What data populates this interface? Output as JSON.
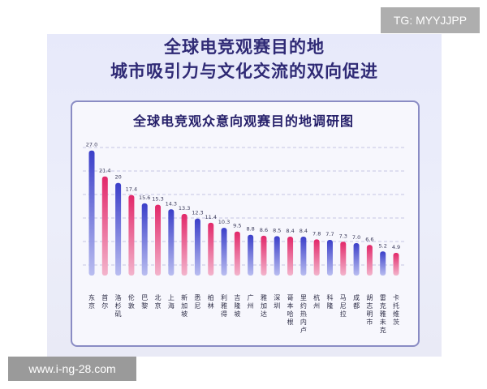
{
  "watermark_top": "TG: MYYJJPP",
  "watermark_bottom": "www.i-ng-28.com",
  "header": {
    "line1": "全球电竞观赛目的地",
    "line2": "城市吸引力与文化交流的双向促进"
  },
  "colors": {
    "blue": "#4f57d8",
    "pink": "#e0336e",
    "title": "#2f2a75"
  },
  "chart_data": {
    "type": "bar",
    "title": "全球电竞观众意向观赛目的地调研图",
    "categories": [
      "东京",
      "首尔",
      "洛杉矶",
      "伦敦",
      "巴黎",
      "北京",
      "上海",
      "新加坡",
      "悉尼",
      "柏林",
      "利雅得",
      "吉隆坡",
      "广州",
      "雅加达",
      "深圳",
      "哥本哈根",
      "里约热内卢",
      "杭州",
      "科隆",
      "马尼拉",
      "成都",
      "胡志明市",
      "雷克雅未克",
      "卡托维茨"
    ],
    "values": [
      27.0,
      21.4,
      20,
      17.4,
      15.6,
      15.3,
      14.3,
      13.3,
      12.3,
      11.4,
      10.3,
      9.5,
      8.8,
      8.6,
      8.5,
      8.4,
      8.4,
      7.8,
      7.7,
      7.3,
      7.0,
      6.6,
      5.2,
      4.9
    ],
    "value_labels": [
      "27.0",
      "21.4",
      "20",
      "17.4",
      "15.6",
      "15.3",
      "14.3",
      "13.3",
      "12.3",
      "11.4",
      "10.3",
      "9.5",
      "8.8",
      "8.6",
      "8.5",
      "8.4",
      "8.4",
      "7.8",
      "7.7",
      "7.3",
      "7.0",
      "6.6",
      "5.2",
      "4.9"
    ],
    "colors_pattern": [
      "blue",
      "pink"
    ],
    "ylim": [
      0,
      28
    ],
    "grid": "horizontal dashed",
    "xlabel": "",
    "ylabel": ""
  }
}
